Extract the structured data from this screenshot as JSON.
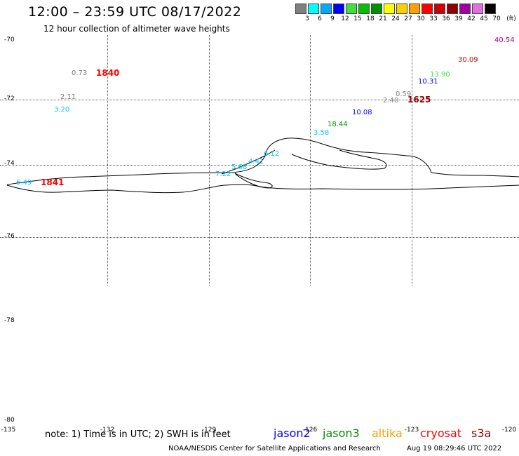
{
  "title": "12:00 – 23:59 UTC 08/17/2022",
  "subtitle": "12 hour collection of altimeter wave heights",
  "colorbar": {
    "unit": "(ft)",
    "labels": [
      "3",
      "6",
      "9",
      "12",
      "15",
      "18",
      "21",
      "24",
      "27",
      "30",
      "33",
      "36",
      "39",
      "42",
      "45",
      "70"
    ],
    "colors": [
      "#808080",
      "#00ffff",
      "#00a8ff",
      "#0000ff",
      "#40e040",
      "#00c000",
      "#009000",
      "#ffff00",
      "#ffd000",
      "#ffa000",
      "#ff0000",
      "#d00000",
      "#900000",
      "#a000a0",
      "#e070e0",
      "#000000"
    ]
  },
  "lat_labels": [
    "-70",
    "-72",
    "-74",
    "-76",
    "-78",
    "-80"
  ],
  "lon_labels": [
    "-135",
    "-132",
    "-129",
    "-126",
    "-123",
    "-120"
  ],
  "wave_heights": [
    {
      "v": "0.73",
      "color": "#808080"
    },
    {
      "v": "2.11",
      "color": "#808080"
    },
    {
      "v": "3.20",
      "color": "#00c8ff"
    },
    {
      "v": "40.54",
      "color": "#a000a0"
    },
    {
      "v": "30.09",
      "color": "#d00000"
    },
    {
      "v": "13.90",
      "color": "#40e040"
    },
    {
      "v": "10.31",
      "color": "#0000ff"
    },
    {
      "v": "0.59",
      "color": "#808080"
    },
    {
      "v": "2.40",
      "color": "#808080"
    },
    {
      "v": "10.08",
      "color": "#0000ff"
    },
    {
      "v": "18.44",
      "color": "#009000"
    },
    {
      "v": "3.58",
      "color": "#00c8ff"
    },
    {
      "v": "6.12",
      "color": "#00c8ff"
    },
    {
      "v": "4.41",
      "color": "#00c8ff"
    },
    {
      "v": "5.68",
      "color": "#00c8ff"
    },
    {
      "v": "7.22",
      "color": "#00c8ff"
    },
    {
      "v": "6.49",
      "color": "#00c8ff"
    }
  ],
  "time_labels": [
    {
      "v": "1840",
      "color": "#ff0000"
    },
    {
      "v": "1625",
      "color": "#900000"
    },
    {
      "v": "1841",
      "color": "#ff0000"
    }
  ],
  "note": "note: 1) Time is in UTC; 2) SWH is in feet",
  "legend": [
    {
      "name": "jason2",
      "color": "#0000ff"
    },
    {
      "name": "jason3",
      "color": "#009000"
    },
    {
      "name": "altika",
      "color": "#ffa000"
    },
    {
      "name": "cryosat",
      "color": "#ff0000"
    },
    {
      "name": "s3a",
      "color": "#900000"
    }
  ],
  "footer": "NOAA/NESDIS Center for Satellite Applications and Research",
  "footer_time": "Aug 19 08:29:46 UTC 2022"
}
